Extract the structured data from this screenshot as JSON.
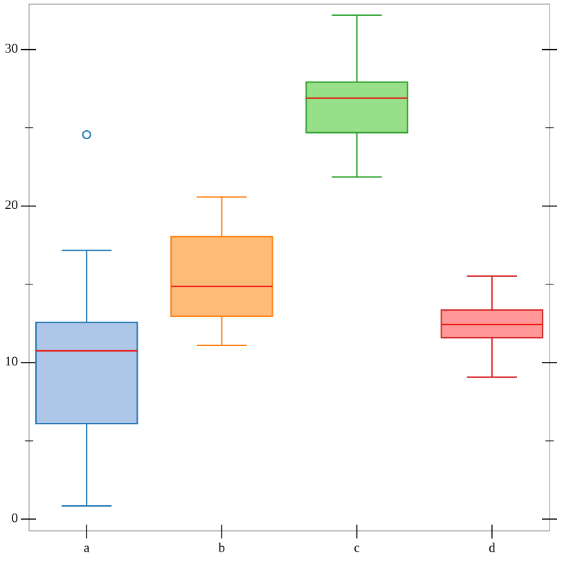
{
  "chart_data": {
    "type": "box",
    "categories": [
      "a",
      "b",
      "c",
      "d"
    ],
    "boxes": [
      {
        "whislo": 0.84,
        "q1": 6.1,
        "med": 10.75,
        "q3": 12.57,
        "whishi": 17.17,
        "fliers": [
          24.56
        ],
        "color": "#1f77b4",
        "fill": "#aec7e8"
      },
      {
        "whislo": 11.1,
        "q1": 12.96,
        "med": 14.87,
        "q3": 18.05,
        "whishi": 20.58,
        "fliers": [],
        "color": "#ff7f0e",
        "fill": "#ffbb78"
      },
      {
        "whislo": 21.86,
        "q1": 24.69,
        "med": 26.9,
        "q3": 27.92,
        "whishi": 32.2,
        "fliers": [],
        "color": "#2ca02c",
        "fill": "#98df8a"
      },
      {
        "whislo": 9.07,
        "q1": 11.59,
        "med": 12.43,
        "q3": 13.36,
        "whishi": 15.53,
        "fliers": [],
        "color": "#d62728",
        "fill": "#ff9896"
      }
    ],
    "median_color": "#e8120c",
    "ylim": [
      -0.75,
      32.9
    ],
    "yticks": [
      0,
      10,
      20,
      30
    ],
    "minor_yticks": [
      5,
      15,
      25
    ]
  }
}
